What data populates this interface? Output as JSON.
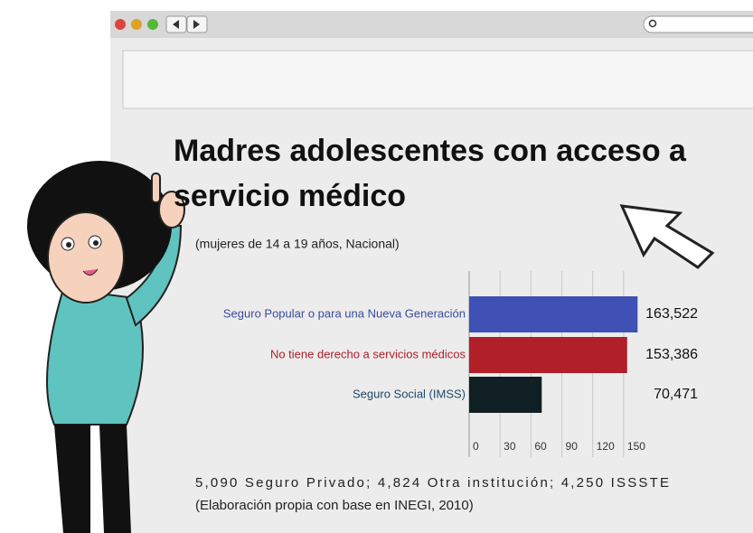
{
  "title": "Madres adolescentes con acceso a servicio médico",
  "subtitle": "(mujeres de 14 a 19 años, Nacional)",
  "chart_data": {
    "type": "bar",
    "orientation": "horizontal",
    "categories": [
      "Seguro Popular o para una Nueva Generación",
      "No tiene derecho a servicios médicos",
      "Seguro Social (IMSS)"
    ],
    "category_colors": [
      "#3a4aa0",
      "#b01e28",
      "#1d4a66"
    ],
    "values": [
      163.522,
      153.386,
      70.471
    ],
    "value_labels": [
      "163,522",
      "153,386",
      "70,471"
    ],
    "colors": [
      "#3f51b5",
      "#b11f29",
      "#0f1f24"
    ],
    "xlim": [
      0,
      165
    ],
    "xticks": [
      0,
      30,
      60,
      90,
      120,
      150
    ],
    "grid": true
  },
  "notes": [
    "5,090 Seguro Privado; 4,824 Otra institución; 4,250 ISSSTE",
    "(Elaboración propia con base en INEGI, 2010)"
  ]
}
